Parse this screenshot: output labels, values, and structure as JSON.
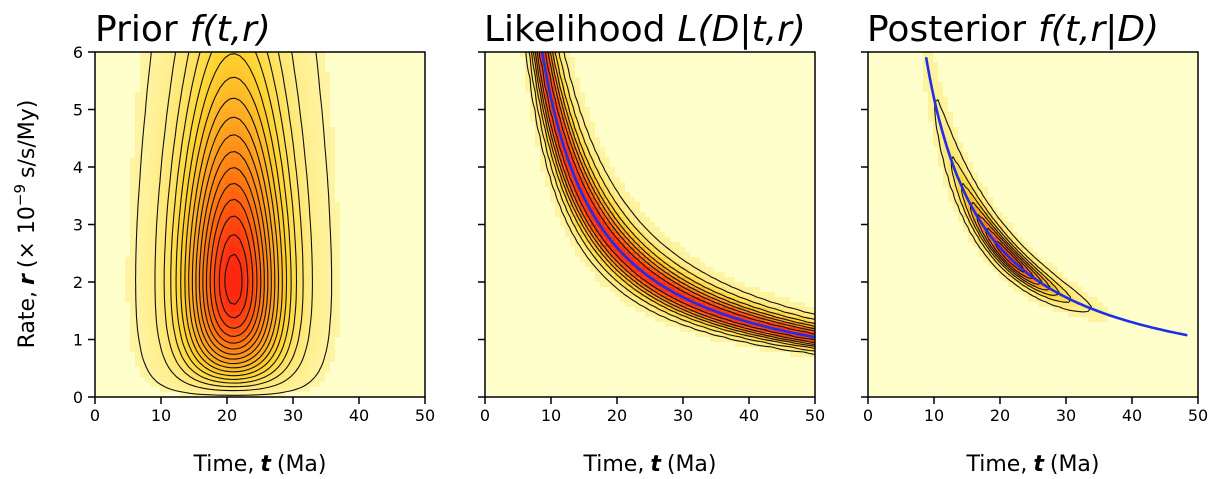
{
  "chart_data": [
    {
      "type": "heatmap",
      "title": "Prior",
      "title_formula": "f(t,r)",
      "xlabel_prefix": "Time,",
      "xlabel_var": "t",
      "xlabel_unit": "(Ma)",
      "ylabel_prefix": "Rate,",
      "ylabel_var": "r",
      "ylabel_unit": "(× 10",
      "ylabel_exp": "−9",
      "ylabel_suffix": "s/s/My)",
      "xlim": [
        0,
        50
      ],
      "ylim": [
        0,
        6
      ],
      "x_ticks": [
        "0",
        "10",
        "20",
        "30",
        "40",
        "50"
      ],
      "y_ticks": [
        "0",
        "1",
        "2",
        "3",
        "4",
        "5",
        "6"
      ],
      "density": {
        "kind": "prior",
        "t_mode": 21,
        "t_sd": 5.3,
        "r_shape": 2.3,
        "r_scale": 1.55
      },
      "contour_levels": [
        0.02,
        0.08,
        0.14,
        0.2,
        0.26,
        0.32,
        0.38,
        0.44,
        0.5,
        0.56,
        0.62,
        0.68,
        0.74,
        0.8,
        0.86,
        0.92,
        0.97
      ],
      "colors": {
        "background": "#ffffcc",
        "low": "#fff4a3",
        "mid": "#ffd530",
        "high": "#ff7a10",
        "peak": "#ff2410"
      }
    },
    {
      "type": "heatmap",
      "title": "Likelihood",
      "title_formula": "L(D|t,r)",
      "xlabel_prefix": "Time,",
      "xlabel_var": "t",
      "xlabel_unit": "(Ma)",
      "xlim": [
        0,
        50
      ],
      "ylim": [
        0,
        6
      ],
      "x_ticks": [
        "0",
        "10",
        "20",
        "30",
        "40",
        "50"
      ],
      "y_ticks": [
        "0",
        "1",
        "2",
        "3",
        "4",
        "5",
        "6"
      ],
      "density": {
        "kind": "likelihood",
        "product_tr": 52,
        "log_sd": 0.13
      },
      "ridge_curve": {
        "product_tr": 52,
        "t_from": 8.4,
        "t_to": 50,
        "color": "#1f2fe6"
      },
      "contour_levels": [
        0.05,
        0.15,
        0.3,
        0.45,
        0.6,
        0.75,
        0.9
      ],
      "colors": {
        "background": "#ffffcc",
        "low": "#fff4a3",
        "mid": "#ffd530",
        "high": "#ff7a10",
        "peak": "#ff2410"
      }
    },
    {
      "type": "heatmap",
      "title": "Posterior",
      "title_formula": "f(t,r|D)",
      "xlabel_prefix": "Time,",
      "xlabel_var": "t",
      "xlabel_unit": "(Ma)",
      "xlim": [
        0,
        50
      ],
      "ylim": [
        0,
        6
      ],
      "x_ticks": [
        "0",
        "10",
        "20",
        "30",
        "40",
        "50"
      ],
      "y_ticks": [
        "0",
        "1",
        "2",
        "3",
        "4",
        "5",
        "6"
      ],
      "density": {
        "kind": "posterior",
        "product_tr": 52,
        "log_sd": 0.07,
        "t_mode": 21,
        "t_sd": 5.3,
        "r_shape": 2.3,
        "r_scale": 1.55
      },
      "ridge_curve": {
        "product_tr": 52,
        "t_from": 8.8,
        "t_to": 48.4,
        "color": "#1f2fe6"
      },
      "contour_levels": [
        0.05,
        0.18,
        0.32,
        0.46,
        0.6,
        0.74,
        0.88
      ],
      "colors": {
        "background": "#ffffcc",
        "low": "#fff4a3",
        "mid": "#ffd530",
        "high": "#ff7a10",
        "peak": "#ff2410"
      }
    }
  ]
}
